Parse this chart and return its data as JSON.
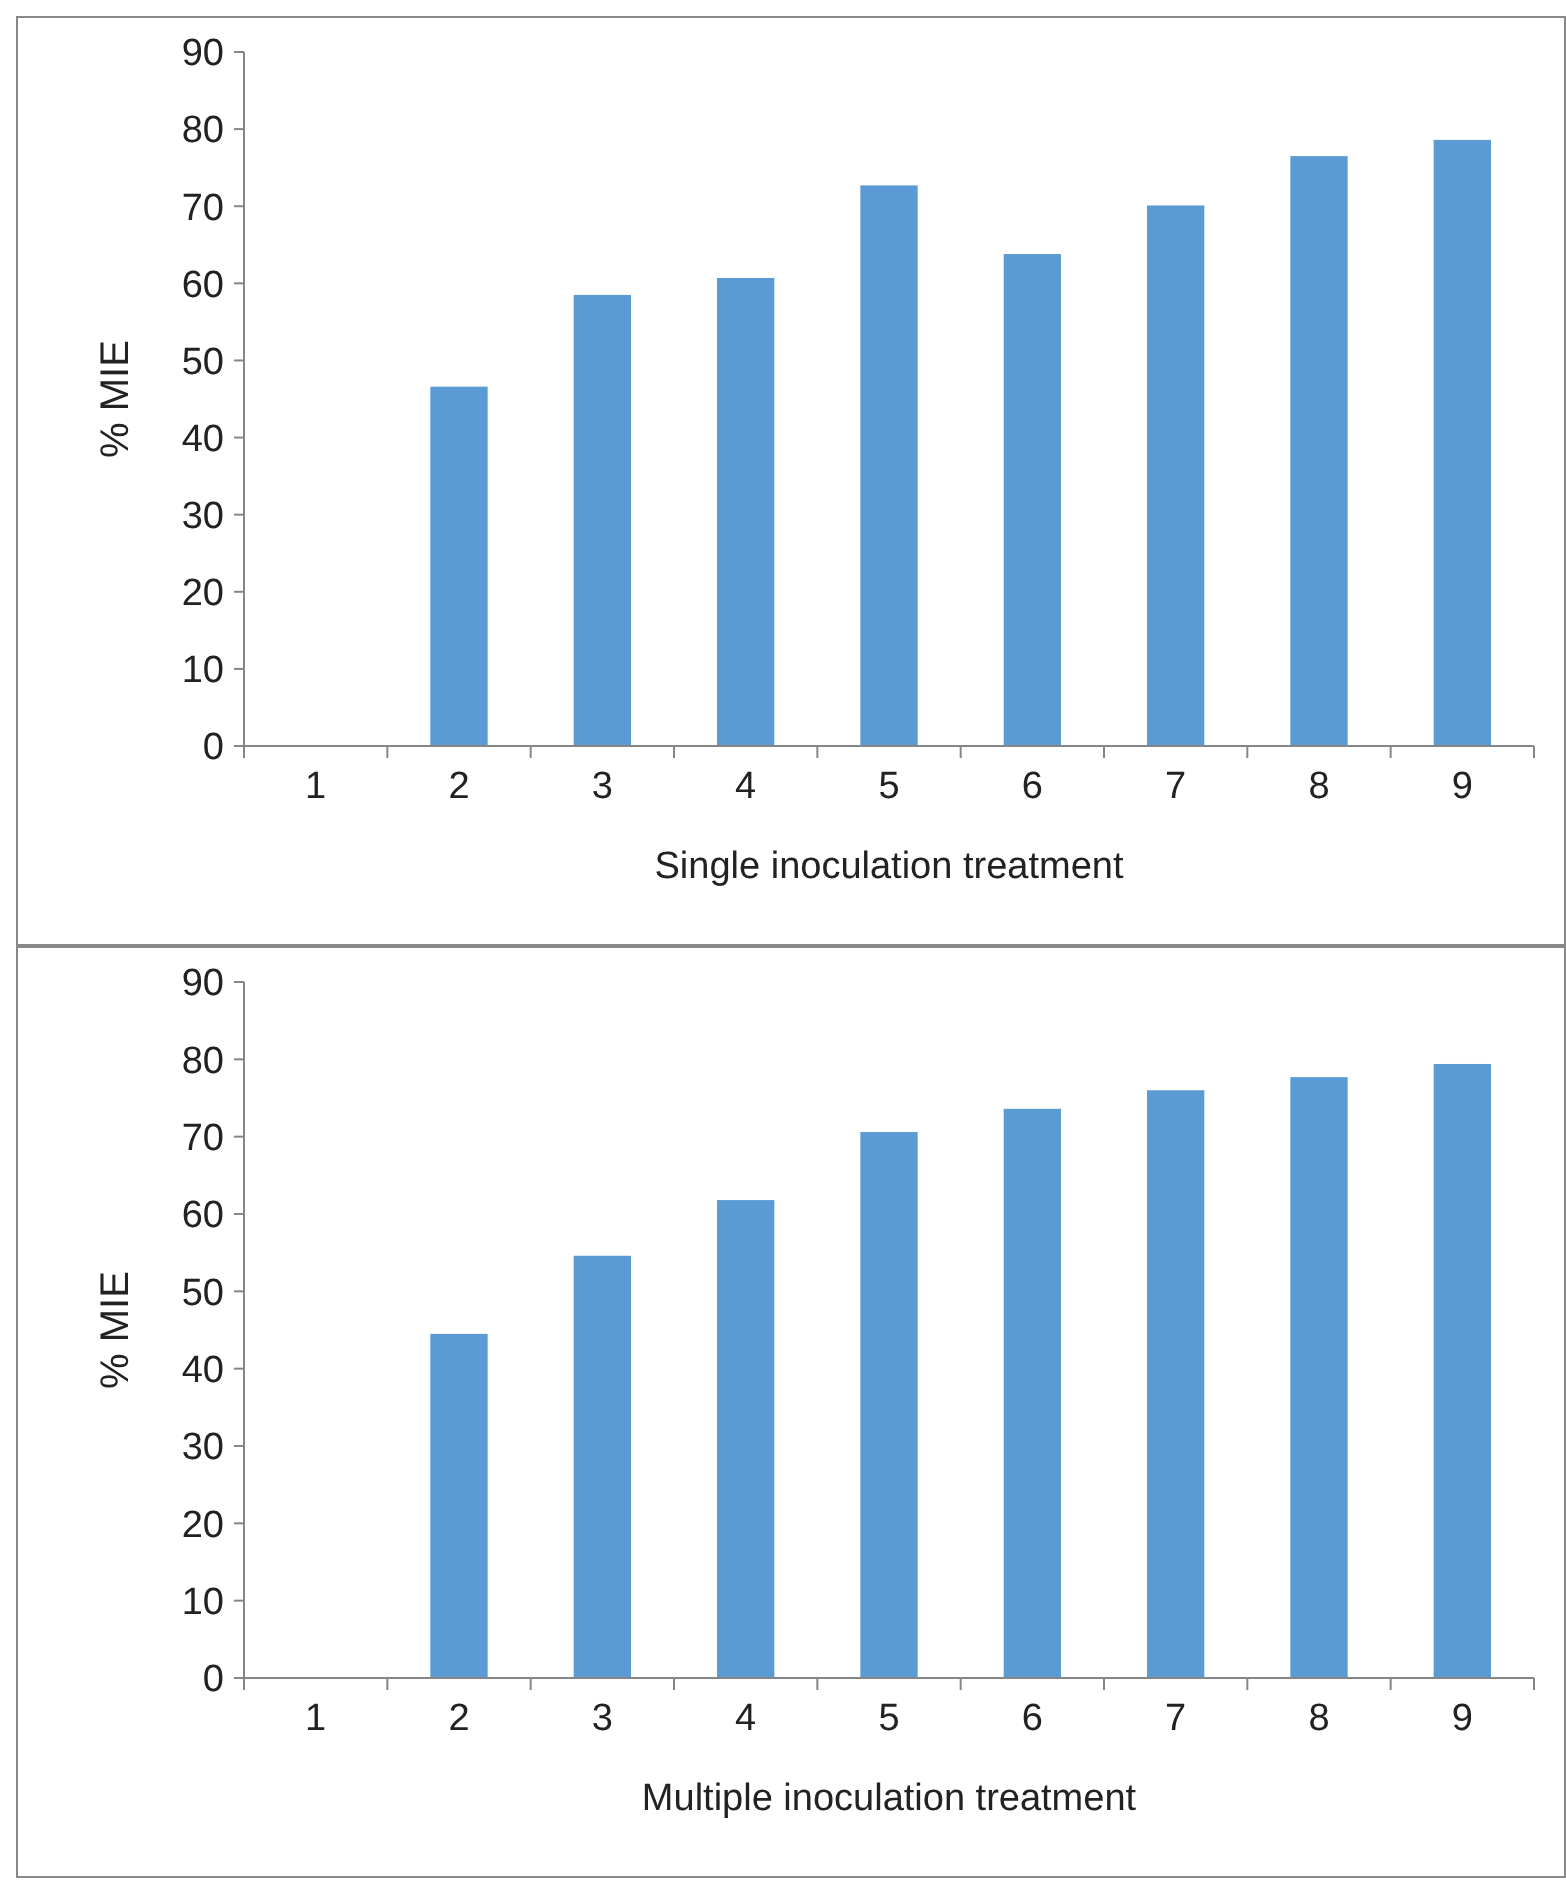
{
  "chart_data": [
    {
      "type": "bar",
      "categories": [
        "1",
        "2",
        "3",
        "4",
        "5",
        "6",
        "7",
        "8",
        "9"
      ],
      "values": [
        0,
        46.6,
        58.5,
        60.7,
        72.7,
        63.8,
        70.1,
        76.5,
        78.6
      ],
      "color": "#5b9bd5",
      "ylim": [
        0,
        90
      ],
      "yticks": [
        0,
        10,
        20,
        30,
        40,
        50,
        60,
        70,
        80,
        90
      ],
      "xlabel": "Single inoculation treatment",
      "ylabel": "% MIE"
    },
    {
      "type": "bar",
      "categories": [
        "1",
        "2",
        "3",
        "4",
        "5",
        "6",
        "7",
        "8",
        "9"
      ],
      "values": [
        0,
        44.5,
        54.6,
        61.8,
        70.6,
        73.6,
        76.0,
        77.7,
        79.4
      ],
      "color": "#5b9bd5",
      "ylim": [
        0,
        90
      ],
      "yticks": [
        0,
        10,
        20,
        30,
        40,
        50,
        60,
        70,
        80,
        90
      ],
      "xlabel": "Multiple inoculation treatment",
      "ylabel": "% MIE"
    }
  ]
}
